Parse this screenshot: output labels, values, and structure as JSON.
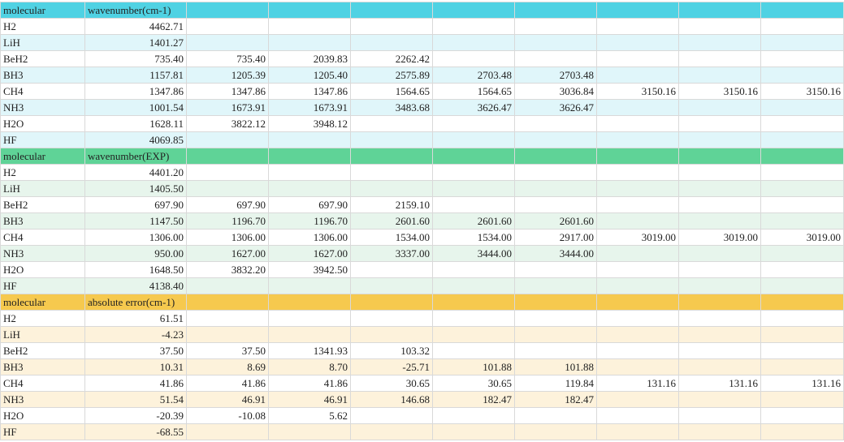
{
  "sections": [
    {
      "header": [
        "molecular",
        "wavenumber(cm-1)"
      ],
      "rows": [
        [
          "H2",
          "4462.71"
        ],
        [
          "LiH",
          "1401.27"
        ],
        [
          "BeH2",
          "735.40",
          "735.40",
          "2039.83",
          "2262.42"
        ],
        [
          "BH3",
          "1157.81",
          "1205.39",
          "1205.40",
          "2575.89",
          "2703.48",
          "2703.48"
        ],
        [
          "CH4",
          "1347.86",
          "1347.86",
          "1347.86",
          "1564.65",
          "1564.65",
          "3036.84",
          "3150.16",
          "3150.16",
          "3150.16"
        ],
        [
          "NH3",
          "1001.54",
          "1673.91",
          "1673.91",
          "3483.68",
          "3626.47",
          "3626.47"
        ],
        [
          "H2O",
          "1628.11",
          "3822.12",
          "3948.12"
        ],
        [
          "HF",
          "4069.85"
        ]
      ]
    },
    {
      "header": [
        "molecular",
        "wavenumber(EXP)"
      ],
      "rows": [
        [
          "H2",
          "4401.20"
        ],
        [
          "LiH",
          "1405.50"
        ],
        [
          "BeH2",
          "697.90",
          "697.90",
          "697.90",
          "2159.10"
        ],
        [
          "BH3",
          "1147.50",
          "1196.70",
          "1196.70",
          "2601.60",
          "2601.60",
          "2601.60"
        ],
        [
          "CH4",
          "1306.00",
          "1306.00",
          "1306.00",
          "1534.00",
          "1534.00",
          "2917.00",
          "3019.00",
          "3019.00",
          "3019.00"
        ],
        [
          "NH3",
          "950.00",
          "1627.00",
          "1627.00",
          "3337.00",
          "3444.00",
          "3444.00"
        ],
        [
          "H2O",
          "1648.50",
          "3832.20",
          "3942.50"
        ],
        [
          "HF",
          "4138.40"
        ]
      ]
    },
    {
      "header": [
        "molecular",
        "absolute error(cm-1)"
      ],
      "rows": [
        [
          "H2",
          "61.51"
        ],
        [
          "LiH",
          "-4.23"
        ],
        [
          "BeH2",
          "37.50",
          "37.50",
          "1341.93",
          "103.32"
        ],
        [
          "BH3",
          "10.31",
          "8.69",
          "8.70",
          "-25.71",
          "101.88",
          "101.88"
        ],
        [
          "CH4",
          "41.86",
          "41.86",
          "41.86",
          "30.65",
          "30.65",
          "119.84",
          "131.16",
          "131.16",
          "131.16"
        ],
        [
          "NH3",
          "51.54",
          "46.91",
          "46.91",
          "146.68",
          "182.47",
          "182.47"
        ],
        [
          "H2O",
          "-20.39",
          "-10.08",
          "5.62"
        ],
        [
          "HF",
          "-68.55"
        ]
      ]
    }
  ]
}
